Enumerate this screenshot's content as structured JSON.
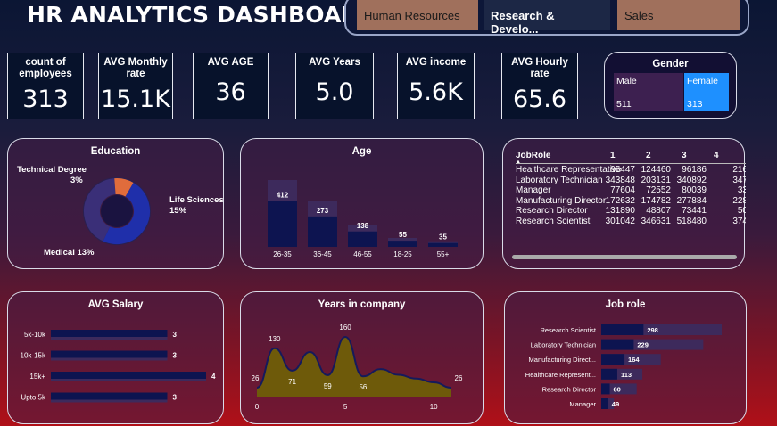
{
  "title": "HR ANALYTICS DASHBOARD",
  "department_slicer": {
    "items": [
      {
        "label": "Human Resources",
        "selected": false
      },
      {
        "label": "Research & Develo...",
        "selected": true
      },
      {
        "label": "Sales",
        "selected": false
      }
    ]
  },
  "kpis": [
    {
      "label": "count of employees",
      "value": "313"
    },
    {
      "label": "AVG Monthly rate",
      "value": "15.1K"
    },
    {
      "label": "AVG AGE",
      "value": "36"
    },
    {
      "label": "AVG Years",
      "value": "5.0"
    },
    {
      "label": "AVG income",
      "value": "5.6K"
    },
    {
      "label": "AVG Hourly rate",
      "value": "65.6"
    }
  ],
  "gender": {
    "title": "Gender",
    "male": {
      "label": "Male",
      "count": "511"
    },
    "female": {
      "label": "Female",
      "count": "313"
    }
  },
  "colors": {
    "bar_dark": "#0d1450",
    "bar_light": "#3d2a5c",
    "female_selected": "#1e90ff",
    "area_fill": "#6e5a0a",
    "donut_life": "#1f2faa",
    "donut_tech": "#e06c3c",
    "donut_medical": "#3a2f78"
  },
  "chart_data": [
    {
      "type": "pie",
      "title": "Education",
      "labels": [
        "Life Sciences",
        "Medical",
        "Technical Degree"
      ],
      "values": [
        15,
        13,
        3
      ],
      "data_labels": [
        "Life Sciences 15%",
        "Medical 13%",
        "Technical Degree 3%"
      ]
    },
    {
      "type": "bar",
      "title": "Age",
      "categories": [
        "26-35",
        "36-45",
        "46-55",
        "18-25",
        "55+"
      ],
      "values": [
        412,
        273,
        138,
        55,
        35
      ],
      "totals": [
        600,
        410,
        200,
        80,
        50
      ]
    },
    {
      "type": "table",
      "title": "JobRole",
      "columns": [
        "JobRole",
        "1",
        "2",
        "3",
        "4"
      ],
      "rows": [
        [
          "Healthcare Representative",
          "95447",
          "124460",
          "96186",
          "216"
        ],
        [
          "Laboratory Technician",
          "343848",
          "203131",
          "340892",
          "347"
        ],
        [
          "Manager",
          "77604",
          "72552",
          "80039",
          "33"
        ],
        [
          "Manufacturing Director",
          "172632",
          "174782",
          "277884",
          "228"
        ],
        [
          "Research Director",
          "131890",
          "48807",
          "73441",
          "50"
        ],
        [
          "Research Scientist",
          "301042",
          "346631",
          "518480",
          "374"
        ]
      ]
    },
    {
      "type": "bar",
      "title": "AVG Salary",
      "categories": [
        "5k-10k",
        "10k-15k",
        "15k+",
        "Upto 5k"
      ],
      "values": [
        3,
        3,
        4,
        3
      ]
    },
    {
      "type": "area",
      "title": "Years in company",
      "x": [
        0,
        1,
        2,
        3,
        4,
        5,
        6,
        7,
        8,
        9,
        10,
        11
      ],
      "y": [
        26,
        130,
        71,
        120,
        59,
        160,
        56,
        75,
        60,
        50,
        40,
        26
      ],
      "point_labels": [
        {
          "x": 0,
          "label": "26"
        },
        {
          "x": 1,
          "label": "130"
        },
        {
          "x": 2,
          "label": "71"
        },
        {
          "x": 4,
          "label": "59"
        },
        {
          "x": 5,
          "label": "160"
        },
        {
          "x": 6,
          "label": "56"
        },
        {
          "x": 11,
          "label": "26"
        }
      ],
      "x_ticks": [
        "0",
        "5",
        "10"
      ]
    },
    {
      "type": "bar",
      "title": "Job role",
      "categories": [
        "Research Scientist",
        "Laboratory Technician",
        "Manufacturing Direct...",
        "Healthcare Represent...",
        "Research Director",
        "Manager"
      ],
      "values": [
        298,
        229,
        164,
        113,
        60,
        49
      ],
      "totals": [
        850,
        720,
        420,
        290,
        250,
        90
      ]
    }
  ]
}
